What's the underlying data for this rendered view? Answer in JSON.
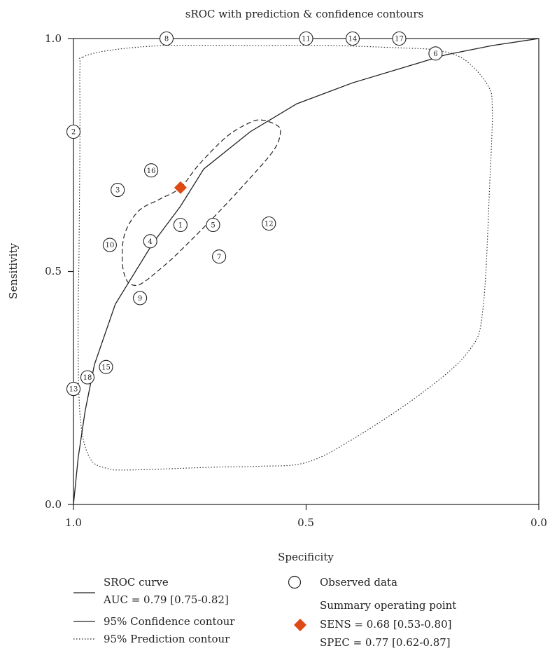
{
  "chart_data": {
    "type": "scatter",
    "title": "sROC with prediction & confidence contours",
    "xlabel": "Specificity",
    "ylabel": "Sensitivity",
    "xlim": [
      1.0,
      0.0
    ],
    "ylim": [
      0.0,
      1.0
    ],
    "x_axis_reversed": true,
    "x_ticks": [
      "1.0",
      "0.5",
      "0.0"
    ],
    "y_ticks": [
      "0.0",
      "0.5",
      "1.0"
    ],
    "grid": false,
    "legend_position": "bottom",
    "colors": {
      "summary_point": "#dd4a14",
      "lines": "#222222"
    },
    "observed": [
      {
        "id": "1",
        "spec": 0.77,
        "sens": 0.6
      },
      {
        "id": "2",
        "spec": 1.0,
        "sens": 0.8
      },
      {
        "id": "3",
        "spec": 0.905,
        "sens": 0.675
      },
      {
        "id": "4",
        "spec": 0.835,
        "sens": 0.565
      },
      {
        "id": "5",
        "spec": 0.7,
        "sens": 0.6
      },
      {
        "id": "6",
        "spec": 0.222,
        "sens": 0.968
      },
      {
        "id": "7",
        "spec": 0.687,
        "sens": 0.532
      },
      {
        "id": "8",
        "spec": 0.8,
        "sens": 1.0
      },
      {
        "id": "9",
        "spec": 0.857,
        "sens": 0.443
      },
      {
        "id": "10",
        "spec": 0.922,
        "sens": 0.557
      },
      {
        "id": "11",
        "spec": 0.5,
        "sens": 1.0
      },
      {
        "id": "12",
        "spec": 0.58,
        "sens": 0.603
      },
      {
        "id": "13",
        "spec": 1.0,
        "sens": 0.248
      },
      {
        "id": "14",
        "spec": 0.4,
        "sens": 1.0
      },
      {
        "id": "15",
        "spec": 0.93,
        "sens": 0.295
      },
      {
        "id": "16",
        "spec": 0.833,
        "sens": 0.717
      },
      {
        "id": "17",
        "spec": 0.3,
        "sens": 1.0
      },
      {
        "id": "18",
        "spec": 0.97,
        "sens": 0.273
      }
    ],
    "summary_point": {
      "spec": 0.77,
      "sens": 0.68
    },
    "sroc_curve": [
      [
        1.0,
        0.0
      ],
      [
        0.99,
        0.1
      ],
      [
        0.975,
        0.2
      ],
      [
        0.955,
        0.3
      ],
      [
        0.91,
        0.43
      ],
      [
        0.83,
        0.56
      ],
      [
        0.8,
        0.6
      ],
      [
        0.77,
        0.64
      ],
      [
        0.72,
        0.72
      ],
      [
        0.62,
        0.8
      ],
      [
        0.52,
        0.86
      ],
      [
        0.4,
        0.905
      ],
      [
        0.3,
        0.935
      ],
      [
        0.2,
        0.965
      ],
      [
        0.1,
        0.985
      ],
      [
        0.0,
        1.0
      ]
    ],
    "confidence_contour": [
      [
        0.77,
        0.68
      ],
      [
        0.73,
        0.73
      ],
      [
        0.67,
        0.79
      ],
      [
        0.62,
        0.82
      ],
      [
        0.595,
        0.825
      ],
      [
        0.565,
        0.815
      ],
      [
        0.555,
        0.8
      ],
      [
        0.57,
        0.76
      ],
      [
        0.63,
        0.69
      ],
      [
        0.705,
        0.61
      ],
      [
        0.78,
        0.535
      ],
      [
        0.82,
        0.5
      ],
      [
        0.845,
        0.48
      ],
      [
        0.865,
        0.47
      ],
      [
        0.885,
        0.48
      ],
      [
        0.895,
        0.52
      ],
      [
        0.89,
        0.58
      ],
      [
        0.86,
        0.63
      ],
      [
        0.815,
        0.655
      ],
      [
        0.77,
        0.68
      ]
    ],
    "prediction_contour": [
      [
        0.98,
        0.96
      ],
      [
        0.92,
        0.975
      ],
      [
        0.8,
        0.985
      ],
      [
        0.6,
        0.985
      ],
      [
        0.45,
        0.985
      ],
      [
        0.3,
        0.98
      ],
      [
        0.22,
        0.975
      ],
      [
        0.16,
        0.955
      ],
      [
        0.11,
        0.9
      ],
      [
        0.1,
        0.85
      ],
      [
        0.105,
        0.7
      ],
      [
        0.12,
        0.42
      ],
      [
        0.15,
        0.33
      ],
      [
        0.25,
        0.24
      ],
      [
        0.4,
        0.14
      ],
      [
        0.5,
        0.09
      ],
      [
        0.6,
        0.082
      ],
      [
        0.7,
        0.08
      ],
      [
        0.88,
        0.074
      ],
      [
        0.93,
        0.078
      ],
      [
        0.965,
        0.1
      ],
      [
        0.985,
        0.18
      ],
      [
        0.99,
        0.35
      ],
      [
        0.988,
        0.55
      ],
      [
        0.986,
        0.8
      ],
      [
        0.986,
        0.94
      ],
      [
        0.98,
        0.96
      ]
    ]
  },
  "legend": {
    "sroc_label": "SROC curve",
    "auc_label": "AUC = 0.79 [0.75-0.82]",
    "confidence_label": "95% Confidence contour",
    "prediction_label": "95% Prediction contour",
    "observed_label": "Observed data",
    "summary_label": "Summary operating point",
    "sens_label": "SENS = 0.68 [0.53-0.80]",
    "spec_label": "SPEC = 0.77 [0.62-0.87]"
  }
}
